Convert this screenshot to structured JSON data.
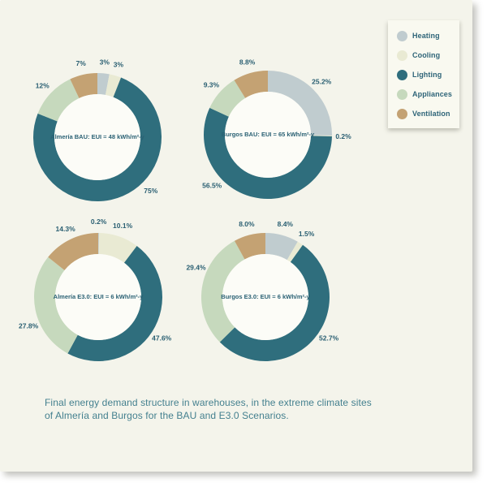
{
  "colors": {
    "heating": "#c0cccf",
    "cooling": "#e9ead3",
    "lighting": "#2f6e7d",
    "appliances": "#c6d9bd",
    "ventilation": "#c4a273",
    "hole": "#fcfcf7",
    "card_bg": "#f4f4eb",
    "legend_bg": "#f9f9f0",
    "label_text": "#2a5f72",
    "caption_text": "#44808f"
  },
  "legend": {
    "items": [
      {
        "label": "Heating",
        "color": "#c0cccf"
      },
      {
        "label": "Cooling",
        "color": "#e9ead3"
      },
      {
        "label": "Lighting",
        "color": "#2f6e7d"
      },
      {
        "label": "Appliances",
        "color": "#c6d9bd"
      },
      {
        "label": "Ventilation",
        "color": "#c4a273"
      }
    ]
  },
  "chart_data": [
    {
      "type": "pie",
      "title": "Almería BAU: EUI = 48 kWh/m²-y",
      "categories": [
        "Heating",
        "Cooling",
        "Lighting",
        "Appliances",
        "Ventilation"
      ],
      "values": [
        3,
        3,
        75,
        12,
        7
      ],
      "labels": [
        "3%",
        "3%",
        "75%",
        "12%",
        "7%"
      ],
      "label_t": [
        0.5,
        0.5,
        0.42,
        0.5,
        0.5
      ],
      "legend_position": "top-right",
      "donut": true
    },
    {
      "type": "pie",
      "title": "Burgos BAU: EUI = 65 kWh/m²-y",
      "categories": [
        "Heating",
        "Cooling",
        "Lighting",
        "Appliances",
        "Ventilation"
      ],
      "values": [
        25.2,
        0.2,
        56.5,
        9.3,
        8.8
      ],
      "labels": [
        "25.2%",
        "0.2%",
        "56.5%",
        "9.3%",
        "8.8%"
      ],
      "label_t": [
        0.5,
        0.5,
        0.67,
        0.5,
        0.5
      ],
      "legend_position": "top-right",
      "donut": true
    },
    {
      "type": "pie",
      "title": "Almería E3.0: EUI = 6 kWh/m²-y",
      "categories": [
        "Heating",
        "Cooling",
        "Lighting",
        "Appliances",
        "Ventilation"
      ],
      "values": [
        0.2,
        10.1,
        47.6,
        27.8,
        14.3
      ],
      "labels": [
        "0.2%",
        "10.1%",
        "47.6%",
        "27.8%",
        "14.3%"
      ],
      "label_t": [
        0.5,
        0.5,
        0.5,
        0.39,
        0.5
      ],
      "legend_position": "top-right",
      "donut": true
    },
    {
      "type": "pie",
      "title": "Burgos E3.0: EUI = 6 kWh/m²-y",
      "categories": [
        "Heating",
        "Cooling",
        "Lighting",
        "Appliances",
        "Ventilation"
      ],
      "values": [
        8.4,
        1.5,
        52.7,
        29.4,
        8.0
      ],
      "labels": [
        "8.4%",
        "1.5%",
        "52.7%",
        "29.4%",
        "8.0%"
      ],
      "label_t": [
        0.5,
        0.5,
        0.46,
        0.64,
        0.5
      ],
      "legend_position": "top-right",
      "donut": true
    }
  ],
  "caption": {
    "line1": "Final energy demand structure in warehouses, in the extreme climate sites",
    "line2": "of Almería and Burgos for the BAU and E3.0 Scenarios."
  }
}
